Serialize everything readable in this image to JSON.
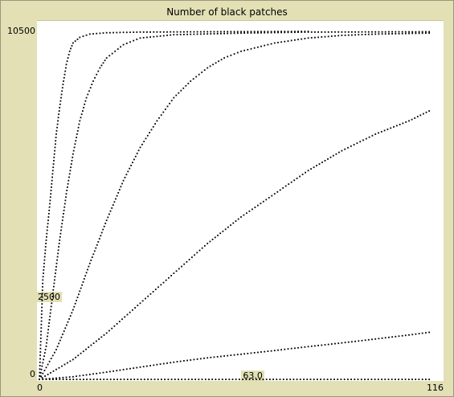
{
  "plot": {
    "title": "Number of black patches"
  },
  "chart_data": {
    "type": "scatter",
    "title": "Number of black patches",
    "xlabel": "",
    "ylabel": "",
    "xlim": [
      0,
      116
    ],
    "ylim": [
      0,
      10500
    ],
    "x_min_label": "0",
    "x_max_label": "116",
    "y_min_label": "0",
    "y_max_label": "10500",
    "markers": [
      {
        "label": "2500",
        "axis": "y",
        "value": 2500
      },
      {
        "label": "63.0",
        "axis": "x",
        "value": 63
      }
    ],
    "colors": {
      "points": "#000000",
      "background": "#e2e0b4",
      "plot_bg": "#ffffff"
    },
    "grid": false,
    "series": [
      {
        "points": [
          [
            0,
            0
          ],
          [
            1,
            3000
          ],
          [
            2,
            4200
          ],
          [
            3,
            5200
          ],
          [
            4,
            6300
          ],
          [
            5,
            7400
          ],
          [
            6,
            8200
          ],
          [
            7,
            8900
          ],
          [
            8,
            9500
          ],
          [
            9,
            9900
          ],
          [
            10,
            10150
          ],
          [
            12,
            10320
          ],
          [
            15,
            10420
          ],
          [
            20,
            10460
          ],
          [
            30,
            10480
          ],
          [
            50,
            10490
          ],
          [
            80,
            10500
          ]
        ]
      },
      {
        "points": [
          [
            0,
            0
          ],
          [
            2,
            1000
          ],
          [
            4,
            2600
          ],
          [
            6,
            4200
          ],
          [
            8,
            5600
          ],
          [
            10,
            6800
          ],
          [
            12,
            7800
          ],
          [
            14,
            8500
          ],
          [
            16,
            9000
          ],
          [
            18,
            9400
          ],
          [
            20,
            9700
          ],
          [
            25,
            10100
          ],
          [
            30,
            10300
          ],
          [
            40,
            10400
          ],
          [
            60,
            10450
          ],
          [
            80,
            10480
          ],
          [
            116,
            10490
          ]
        ]
      },
      {
        "points": [
          [
            0,
            0
          ],
          [
            5,
            900
          ],
          [
            10,
            2100
          ],
          [
            15,
            3500
          ],
          [
            20,
            4800
          ],
          [
            25,
            6000
          ],
          [
            30,
            7000
          ],
          [
            35,
            7800
          ],
          [
            40,
            8500
          ],
          [
            45,
            9000
          ],
          [
            50,
            9400
          ],
          [
            55,
            9700
          ],
          [
            60,
            9900
          ],
          [
            70,
            10150
          ],
          [
            80,
            10300
          ],
          [
            90,
            10380
          ],
          [
            100,
            10420
          ],
          [
            116,
            10450
          ]
        ]
      },
      {
        "points": [
          [
            0,
            0
          ],
          [
            10,
            600
          ],
          [
            20,
            1400
          ],
          [
            30,
            2300
          ],
          [
            40,
            3200
          ],
          [
            50,
            4100
          ],
          [
            60,
            4900
          ],
          [
            70,
            5600
          ],
          [
            80,
            6300
          ],
          [
            90,
            6900
          ],
          [
            100,
            7400
          ],
          [
            110,
            7800
          ],
          [
            116,
            8100
          ]
        ]
      },
      {
        "points": [
          [
            0,
            0
          ],
          [
            10,
            80
          ],
          [
            20,
            220
          ],
          [
            30,
            370
          ],
          [
            40,
            520
          ],
          [
            50,
            650
          ],
          [
            60,
            760
          ],
          [
            70,
            870
          ],
          [
            80,
            990
          ],
          [
            90,
            1100
          ],
          [
            100,
            1220
          ],
          [
            110,
            1340
          ],
          [
            116,
            1420
          ]
        ]
      },
      {
        "points": [
          [
            0,
            0
          ],
          [
            116,
            0
          ]
        ]
      }
    ]
  }
}
